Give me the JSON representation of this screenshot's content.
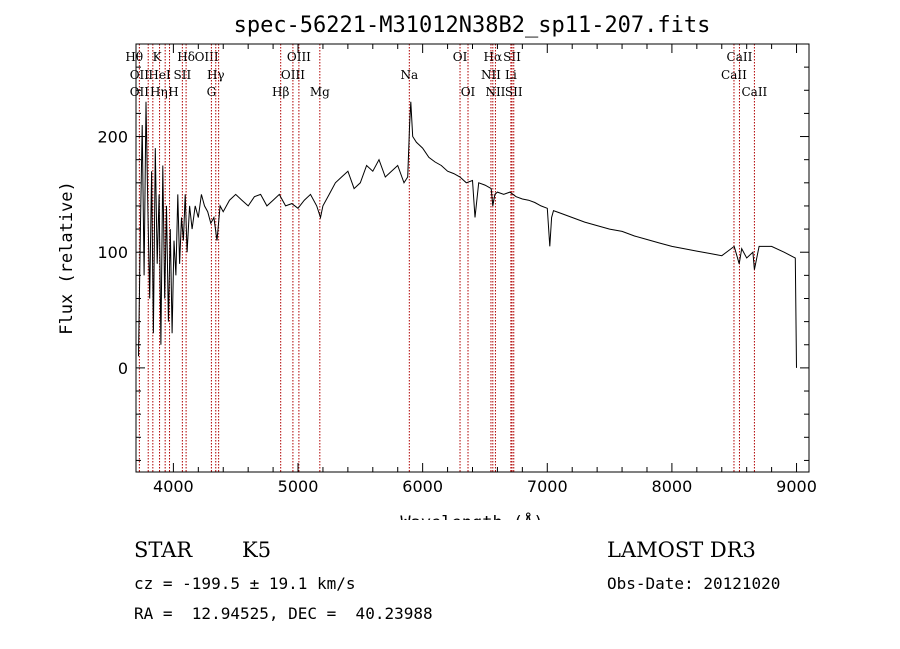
{
  "chart_data": {
    "type": "line",
    "title": "spec-56221-M31012N38B2_sp11-207.fits",
    "xlabel": "Wavelength (Å)",
    "ylabel": "Flux (relative)",
    "xlim": [
      3700,
      9100
    ],
    "ylim": [
      -90,
      280
    ],
    "xticks": [
      4000,
      5000,
      6000,
      7000,
      8000,
      9000
    ],
    "yticks": [
      0,
      100,
      200
    ],
    "grid": false,
    "line_color": "#000000",
    "marker_color": "#b00000",
    "series": [
      {
        "x": [
          3720,
          3735,
          3750,
          3765,
          3780,
          3795,
          3810,
          3825,
          3840,
          3855,
          3870,
          3885,
          3900,
          3915,
          3930,
          3945,
          3960,
          3975,
          3990,
          4005,
          4020,
          4035,
          4050,
          4065,
          4080,
          4095,
          4110,
          4130,
          4150,
          4175,
          4200,
          4225,
          4250,
          4275,
          4300,
          4325,
          4350,
          4375,
          4400,
          4450,
          4500,
          4550,
          4600,
          4650,
          4700,
          4750,
          4800,
          4850,
          4900,
          4950,
          5000,
          5050,
          5100,
          5150,
          5180,
          5200,
          5250,
          5300,
          5350,
          5400,
          5450,
          5500,
          5550,
          5600,
          5650,
          5700,
          5750,
          5800,
          5850,
          5880,
          5895,
          5905,
          5920,
          5950,
          6000,
          6050,
          6100,
          6150,
          6200,
          6250,
          6300,
          6350,
          6400,
          6420,
          6450,
          6500,
          6550,
          6563,
          6580,
          6600,
          6650,
          6700,
          6750,
          6800,
          6850,
          6900,
          6950,
          7000,
          7020,
          7035,
          7050,
          7100,
          7200,
          7300,
          7400,
          7500,
          7600,
          7700,
          7800,
          7900,
          8000,
          8100,
          8200,
          8300,
          8400,
          8500,
          8540,
          8560,
          8600,
          8650,
          8662,
          8700,
          8800,
          8900,
          8990,
          9000
        ],
        "y": [
          10,
          120,
          210,
          80,
          230,
          140,
          60,
          170,
          30,
          190,
          90,
          150,
          20,
          175,
          60,
          140,
          40,
          120,
          30,
          110,
          80,
          150,
          90,
          130,
          110,
          150,
          100,
          140,
          120,
          140,
          130,
          150,
          140,
          135,
          125,
          130,
          110,
          140,
          135,
          145,
          150,
          145,
          140,
          148,
          150,
          140,
          145,
          150,
          140,
          142,
          138,
          145,
          150,
          140,
          130,
          140,
          150,
          160,
          165,
          170,
          155,
          160,
          175,
          170,
          180,
          165,
          170,
          175,
          160,
          165,
          210,
          230,
          200,
          195,
          190,
          182,
          178,
          175,
          170,
          168,
          165,
          160,
          162,
          130,
          160,
          158,
          155,
          140,
          150,
          152,
          150,
          152,
          148,
          146,
          145,
          143,
          140,
          138,
          105,
          130,
          136,
          134,
          130,
          126,
          123,
          120,
          118,
          114,
          111,
          108,
          105,
          103,
          101,
          99,
          97,
          105,
          90,
          103,
          95,
          100,
          85,
          105,
          105,
          100,
          95,
          0
        ]
      }
    ],
    "line_markers": [
      {
        "label": "Hθ",
        "x": 3798,
        "row": 1,
        "dx": -14
      },
      {
        "label": "K",
        "x": 3934,
        "row": 1,
        "dx": -8
      },
      {
        "label": "Hδ",
        "x": 4102,
        "row": 1,
        "dx": 0
      },
      {
        "label": "OIII",
        "x": 4363,
        "row": 1,
        "dx": -12
      },
      {
        "label": "OIII",
        "x": 5007,
        "row": 1,
        "dx": 0
      },
      {
        "label": "OI",
        "x": 6300,
        "row": 1,
        "dx": 0
      },
      {
        "label": "Hα",
        "x": 6563,
        "row": 1,
        "dx": 0
      },
      {
        "label": "SII",
        "x": 6717,
        "row": 1,
        "dx": 0
      },
      {
        "label": "CaII",
        "x": 8542,
        "row": 1,
        "dx": 0
      },
      {
        "label": "OII",
        "x": 3727,
        "row": 2,
        "dx": 0
      },
      {
        "label": "HeI",
        "x": 3889,
        "row": 2,
        "dx": 0
      },
      {
        "label": "SII",
        "x": 4072,
        "row": 2,
        "dx": 0
      },
      {
        "label": "Hγ",
        "x": 4340,
        "row": 2,
        "dx": 0
      },
      {
        "label": "OIII",
        "x": 4959,
        "row": 2,
        "dx": 0
      },
      {
        "label": "Na",
        "x": 5893,
        "row": 2,
        "dx": 0
      },
      {
        "label": "NII",
        "x": 6548,
        "row": 2,
        "dx": 0
      },
      {
        "label": "Li",
        "x": 6708,
        "row": 2,
        "dx": 0
      },
      {
        "label": "CaII",
        "x": 8498,
        "row": 2,
        "dx": 0
      },
      {
        "label": "OII",
        "x": 3727,
        "row": 3,
        "dx": 0
      },
      {
        "label": "Hη",
        "x": 3835,
        "row": 3,
        "dx": 6
      },
      {
        "label": "H",
        "x": 3969,
        "row": 3,
        "dx": 4
      },
      {
        "label": "G",
        "x": 4305,
        "row": 3,
        "dx": 0
      },
      {
        "label": "Hβ",
        "x": 4861,
        "row": 3,
        "dx": 0
      },
      {
        "label": "Mg",
        "x": 5175,
        "row": 3,
        "dx": 0
      },
      {
        "label": "OI",
        "x": 6364,
        "row": 3,
        "dx": 0
      },
      {
        "label": "NII",
        "x": 6584,
        "row": 3,
        "dx": 0
      },
      {
        "label": "SII",
        "x": 6731,
        "row": 3,
        "dx": 0
      },
      {
        "label": "CaII",
        "x": 8662,
        "row": 3,
        "dx": 0
      }
    ]
  },
  "info": {
    "class": "STAR",
    "subclass": "K5",
    "survey": "LAMOST DR3",
    "redshift": "cz = -199.5 ± 19.1 km/s",
    "obs_date": "Obs-Date: 20121020",
    "coords": "RA =  12.94525, DEC =  40.23988"
  }
}
